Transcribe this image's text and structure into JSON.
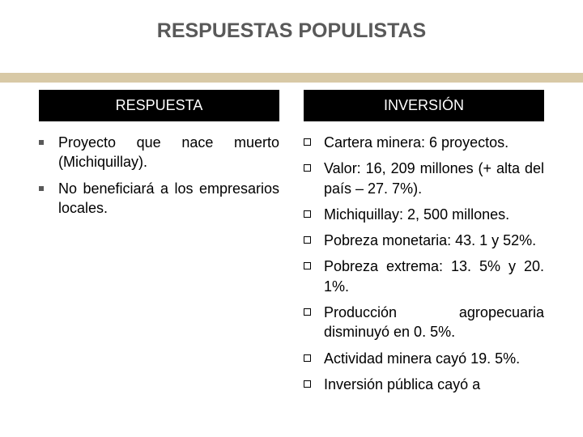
{
  "title": "RESPUESTAS POPULISTAS",
  "accent_color": "#d8c9a6",
  "header_bg": "#000000",
  "header_fg": "#ffffff",
  "text_color": "#000000",
  "title_color": "#595959",
  "left": {
    "header": "RESPUESTA",
    "items": [
      "Proyecto que nace muerto (Michiquillay).",
      "No beneficiará a los empresarios locales."
    ]
  },
  "right": {
    "header": "INVERSIÓN",
    "items": [
      "Cartera minera: 6 proyectos.",
      "Valor: 16, 209 millones (+ alta del país – 27. 7%).",
      "Michiquillay: 2, 500 millones.",
      "Pobreza monetaria: 43. 1 y 52%.",
      "Pobreza extrema: 13. 5% y 20. 1%.",
      "Producción agropecuaria disminuyó en 0. 5%.",
      "Actividad minera cayó 19. 5%.",
      "Inversión pública cayó a"
    ]
  }
}
